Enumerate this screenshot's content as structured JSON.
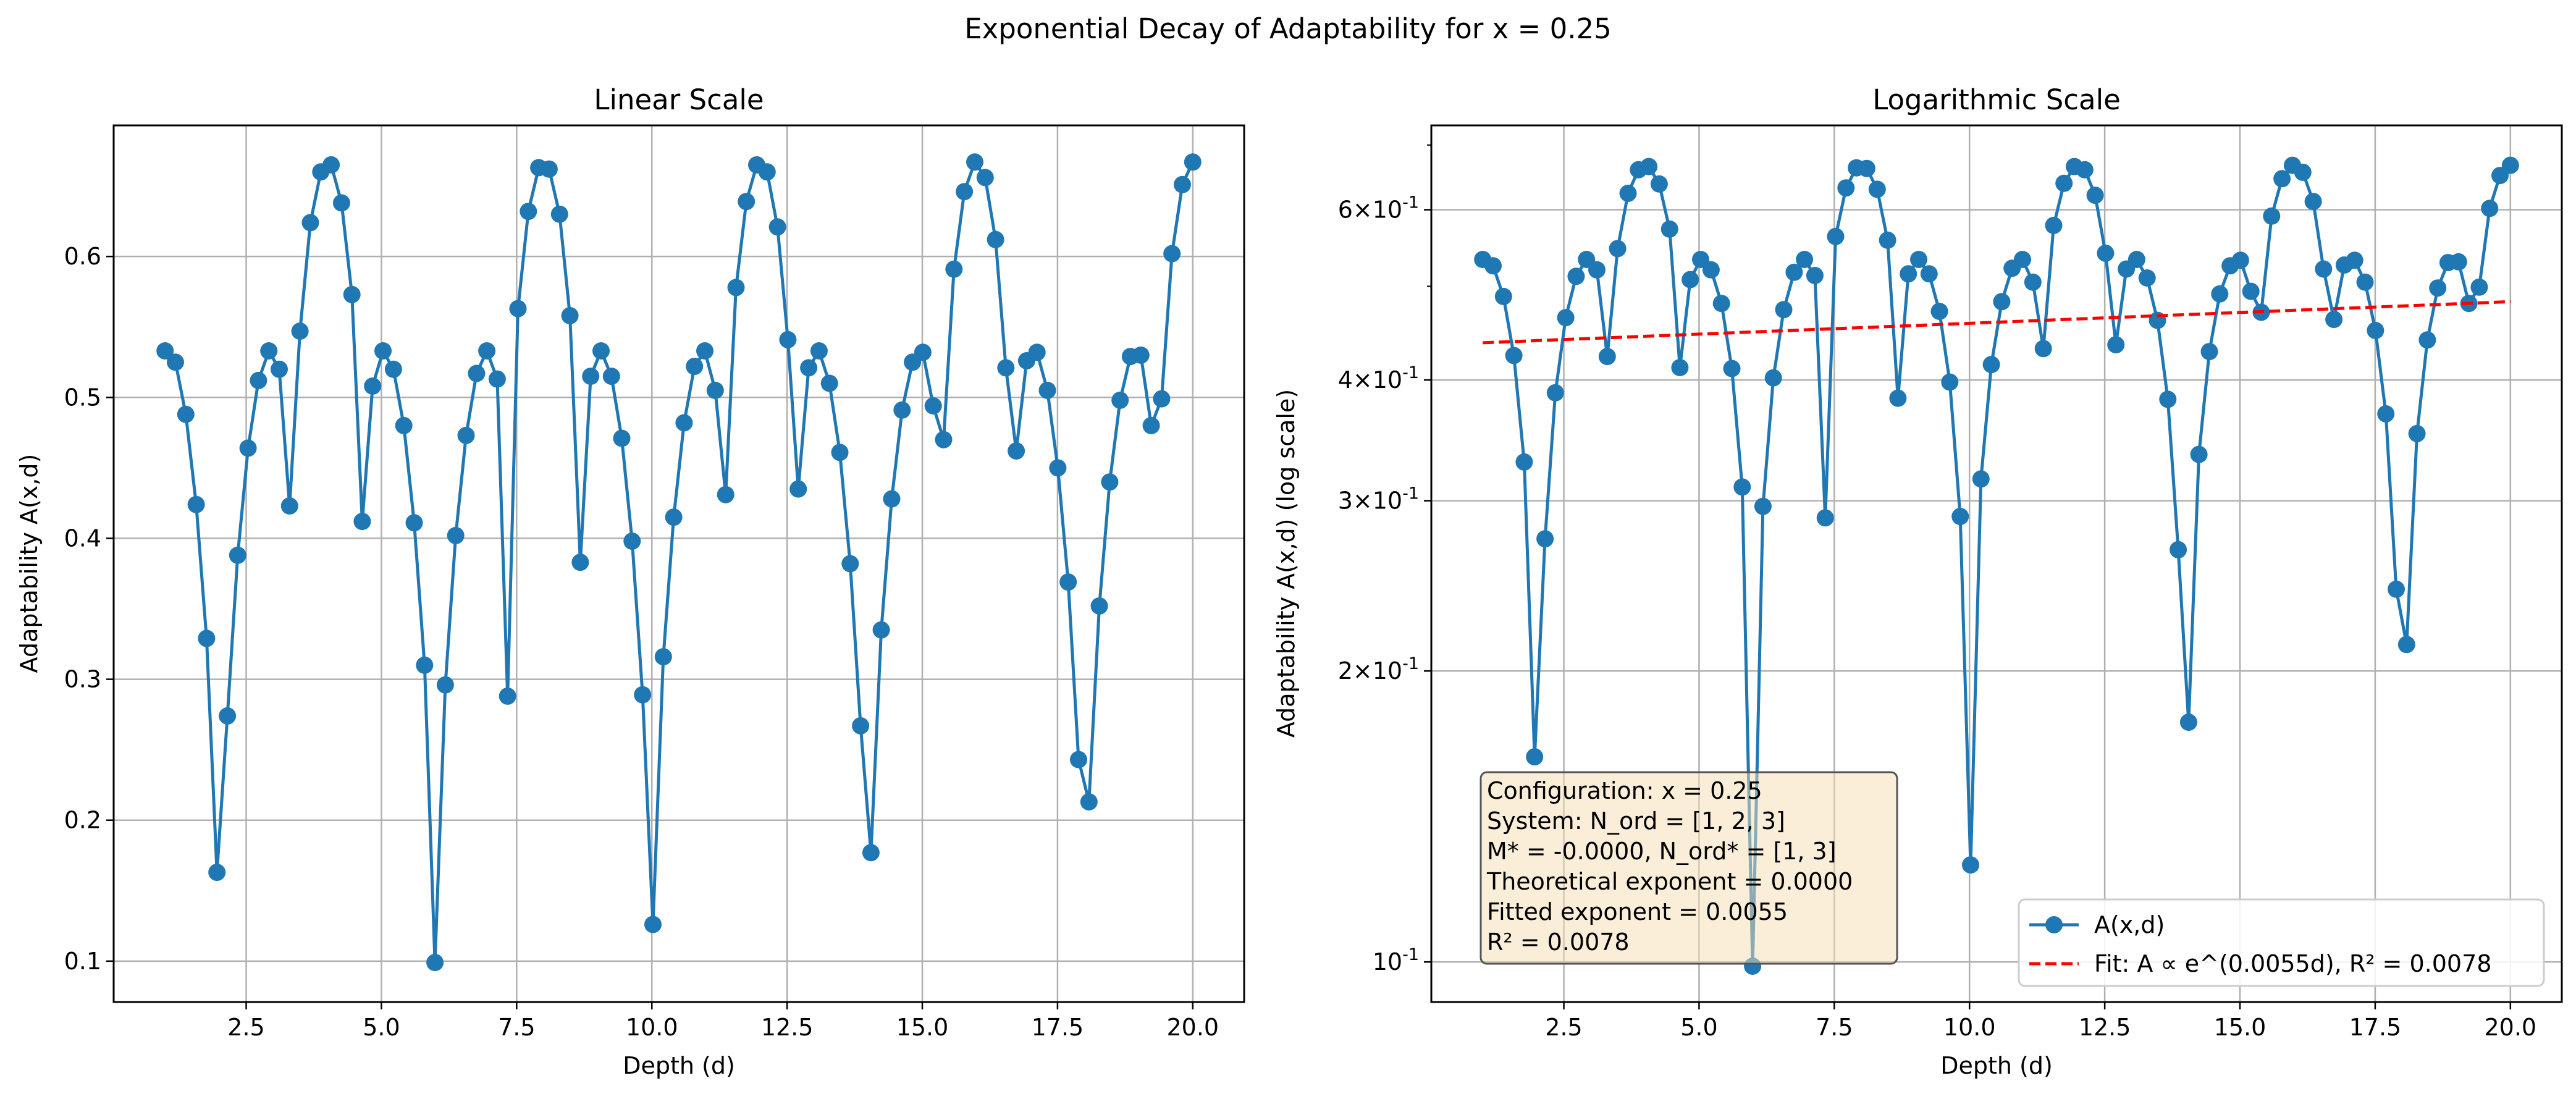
{
  "figure": {
    "suptitle": "Exponential Decay of Adaptability for x = 0.25"
  },
  "chart_data": [
    {
      "type": "line",
      "title": "Linear Scale",
      "xlabel": "Depth (d)",
      "ylabel": "Adaptability A(x,d)",
      "xlim": [
        0.05,
        20.95
      ],
      "ylim": [
        0.071,
        0.693
      ],
      "xscale": "linear",
      "yscale": "linear",
      "xticks": [
        2.5,
        5.0,
        7.5,
        10.0,
        12.5,
        15.0,
        17.5,
        20.0
      ],
      "xtick_labels": [
        "2.5",
        "5.0",
        "7.5",
        "10.0",
        "12.5",
        "15.0",
        "17.5",
        "20.0"
      ],
      "yticks": [
        0.1,
        0.2,
        0.3,
        0.4,
        0.5,
        0.6
      ],
      "ytick_labels": [
        "0.1",
        "0.2",
        "0.3",
        "0.4",
        "0.5",
        "0.6"
      ],
      "grid": true,
      "series": [
        {
          "color": "#1f77b4",
          "marker": "circle",
          "x": [
            1.0,
            1.192,
            1.384,
            1.576,
            1.768,
            1.96,
            2.152,
            2.343,
            2.535,
            2.727,
            2.919,
            3.111,
            3.303,
            3.495,
            3.687,
            3.879,
            4.071,
            4.263,
            4.455,
            4.646,
            4.838,
            5.03,
            5.222,
            5.414,
            5.606,
            5.798,
            5.99,
            6.182,
            6.374,
            6.566,
            6.758,
            6.949,
            7.141,
            7.333,
            7.525,
            7.717,
            7.909,
            8.101,
            8.293,
            8.485,
            8.677,
            8.869,
            9.061,
            9.253,
            9.444,
            9.636,
            9.828,
            10.02,
            10.212,
            10.404,
            10.596,
            10.788,
            10.98,
            11.172,
            11.364,
            11.556,
            11.747,
            11.939,
            12.131,
            12.323,
            12.515,
            12.707,
            12.899,
            13.091,
            13.283,
            13.475,
            13.667,
            13.859,
            14.051,
            14.242,
            14.434,
            14.626,
            14.818,
            15.01,
            15.202,
            15.394,
            15.586,
            15.778,
            15.97,
            16.162,
            16.354,
            16.545,
            16.737,
            16.929,
            17.121,
            17.313,
            17.505,
            17.697,
            17.889,
            18.081,
            18.273,
            18.465,
            18.657,
            18.848,
            19.04,
            19.232,
            19.424,
            19.616,
            19.808,
            20.0
          ],
          "y": [
            0.533,
            0.525,
            0.488,
            0.424,
            0.329,
            0.163,
            0.274,
            0.388,
            0.464,
            0.512,
            0.533,
            0.52,
            0.423,
            0.547,
            0.624,
            0.66,
            0.665,
            0.638,
            0.573,
            0.412,
            0.508,
            0.533,
            0.52,
            0.48,
            0.411,
            0.31,
            0.099,
            0.296,
            0.402,
            0.473,
            0.517,
            0.533,
            0.513,
            0.288,
            0.563,
            0.632,
            0.663,
            0.662,
            0.63,
            0.558,
            0.383,
            0.515,
            0.533,
            0.515,
            0.471,
            0.398,
            0.289,
            0.126,
            0.316,
            0.415,
            0.482,
            0.522,
            0.533,
            0.505,
            0.431,
            0.578,
            0.639,
            0.665,
            0.66,
            0.621,
            0.541,
            0.435,
            0.521,
            0.533,
            0.51,
            0.461,
            0.382,
            0.267,
            0.177,
            0.335,
            0.428,
            0.491,
            0.525,
            0.532,
            0.494,
            0.47,
            0.591,
            0.646,
            0.667,
            0.656,
            0.612,
            0.521,
            0.462,
            0.526,
            0.532,
            0.505,
            0.45,
            0.369,
            0.243,
            0.213,
            0.352,
            0.44,
            0.498,
            0.529,
            0.53,
            0.48,
            0.499,
            0.602,
            0.651,
            0.667
          ]
        }
      ]
    },
    {
      "type": "line",
      "title": "Logarithmic Scale",
      "xlabel": "Depth (d)",
      "ylabel": "Adaptability A(x,d) (log scale)",
      "xlim": [
        0.05,
        20.95
      ],
      "ylim": [
        0.0909,
        0.7335
      ],
      "xscale": "linear",
      "yscale": "log",
      "xticks": [
        2.5,
        5.0,
        7.5,
        10.0,
        12.5,
        15.0,
        17.5,
        20.0
      ],
      "xtick_labels": [
        "2.5",
        "5.0",
        "7.5",
        "10.0",
        "12.5",
        "15.0",
        "17.5",
        "20.0"
      ],
      "yticks": [
        0.1,
        0.2,
        0.3,
        0.4,
        0.6
      ],
      "ytick_labels": [
        "10^{-1}",
        "2×10^{-1}",
        "3×10^{-1}",
        "4×10^{-1}",
        "6×10^{-1}"
      ],
      "yminor_ticks": [
        0.5,
        0.7
      ],
      "grid": true,
      "series": [
        {
          "name": "A(x,d)",
          "color": "#1f77b4",
          "marker": "circle",
          "use_data_of_chart": 0
        },
        {
          "name": "Fit: A ∝ e^(0.0055d), R² = 0.0078",
          "color": "#ff0000",
          "style": "dashed",
          "x": [
            1.0,
            20.0
          ],
          "y": [
            0.437,
            0.482
          ]
        }
      ],
      "legend": {
        "placement": "lower-right",
        "entries": [
          "A(x,d)",
          "Fit: A ∝ e^(0.0055d), R² = 0.0078"
        ]
      },
      "annotation": {
        "placement": "lower-left",
        "lines": [
          "Configuration: x = 0.25",
          "System: N_ord = [1, 2, 3]",
          "M* = -0.0000, N_ord* = [1, 3]",
          "Theoretical exponent = 0.0000",
          "Fitted exponent = 0.0055",
          "R² = 0.0078"
        ],
        "background": "#f5deb3"
      }
    }
  ]
}
